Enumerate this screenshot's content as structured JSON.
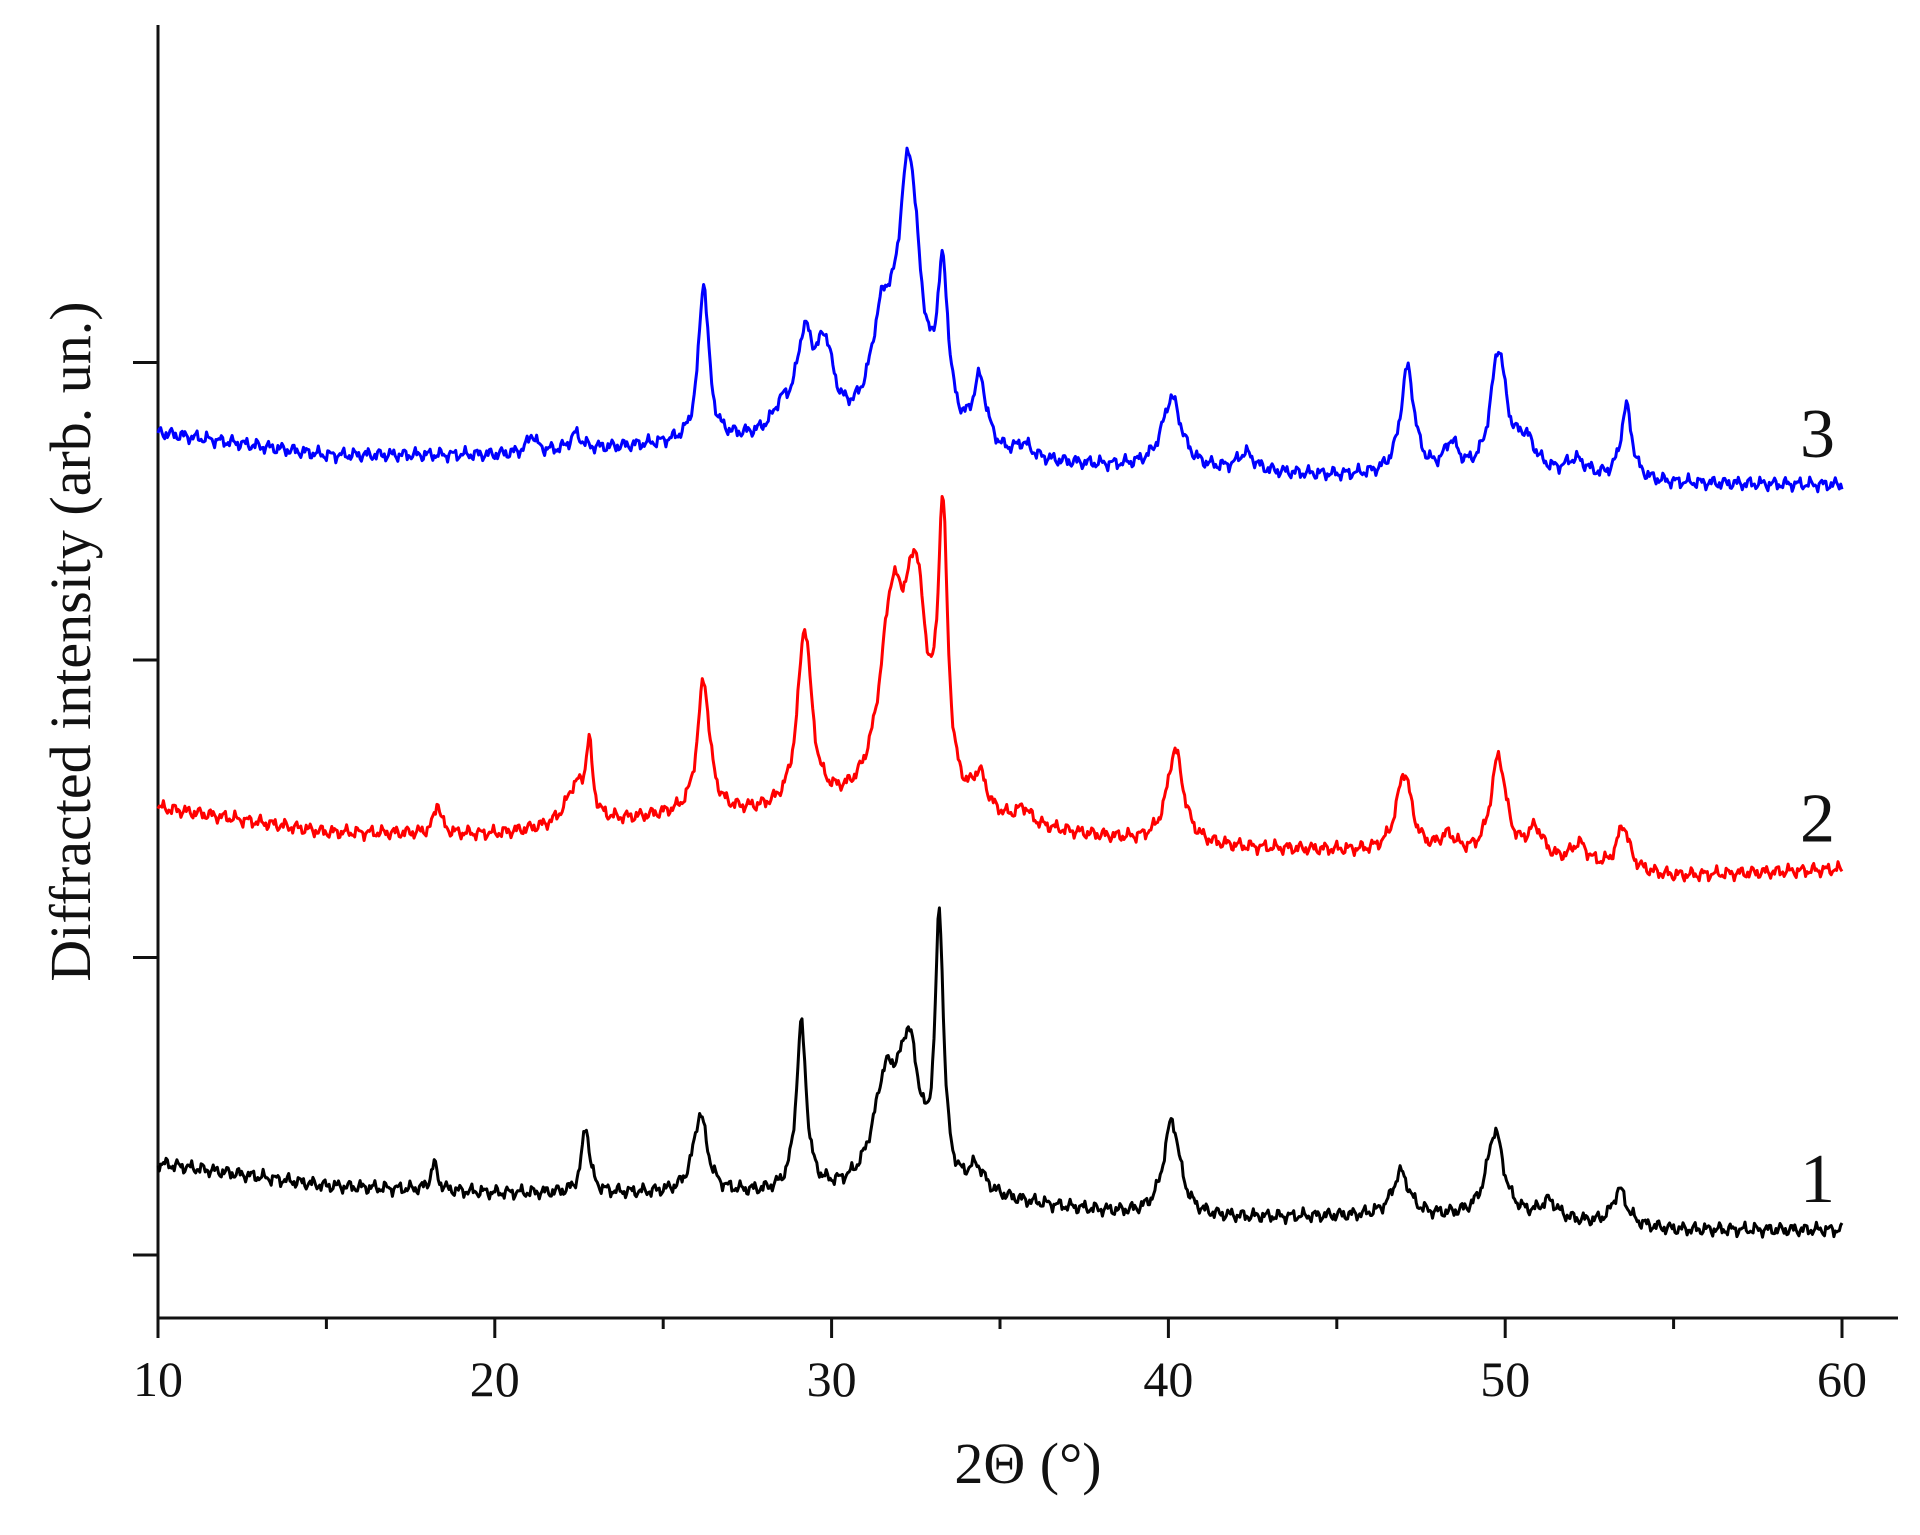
{
  "chart_data": {
    "type": "line",
    "title": "",
    "xlabel": "2Θ (°)",
    "ylabel": "Diffracted intensity (arb. un.)",
    "xlim": [
      10,
      62
    ],
    "ylim": [
      0,
      1000
    ],
    "x_ticks": [
      10,
      20,
      30,
      40,
      50,
      60
    ],
    "x_tick_labels": [
      "10",
      "20",
      "30",
      "40",
      "50",
      "60"
    ],
    "y_ticks": [
      0,
      250,
      500,
      750
    ],
    "y_tick_labels_visible": false,
    "grid": false,
    "legend": "inline-labels-right",
    "series": [
      {
        "label": "1",
        "color": "#000000",
        "baseline": [
          [
            10,
            77
          ],
          [
            15,
            58
          ],
          [
            20,
            52
          ],
          [
            25,
            51
          ],
          [
            30,
            49
          ],
          [
            35,
            44
          ],
          [
            40,
            30
          ],
          [
            45,
            32
          ],
          [
            50,
            31
          ],
          [
            55,
            21
          ],
          [
            60,
            21
          ]
        ],
        "peaks": [
          [
            18.2,
            22,
            0.12
          ],
          [
            22.7,
            56,
            0.14
          ],
          [
            26.1,
            66,
            0.25
          ],
          [
            29.1,
            140,
            0.18
          ],
          [
            31.6,
            85,
            0.45
          ],
          [
            32.3,
            112,
            0.38
          ],
          [
            33.2,
            220,
            0.15
          ],
          [
            34.3,
            22,
            0.3
          ],
          [
            40.1,
            82,
            0.3
          ],
          [
            46.9,
            37,
            0.3
          ],
          [
            49.7,
            72,
            0.3
          ],
          [
            51.3,
            15,
            0.3
          ],
          [
            53.4,
            30,
            0.25
          ]
        ]
      },
      {
        "label": "2",
        "color": "#ff0000",
        "baseline": [
          [
            10,
            376
          ],
          [
            15,
            355
          ],
          [
            20,
            353
          ],
          [
            25,
            367
          ],
          [
            30,
            370
          ],
          [
            35,
            359
          ],
          [
            40,
            343
          ],
          [
            45,
            339
          ],
          [
            50,
            330
          ],
          [
            55,
            318
          ],
          [
            60,
            324
          ]
        ],
        "peaks": [
          [
            18.3,
            26,
            0.12
          ],
          [
            22.4,
            32,
            0.35
          ],
          [
            22.8,
            58,
            0.12
          ],
          [
            26.2,
            112,
            0.22
          ],
          [
            29.2,
            150,
            0.25
          ],
          [
            31.8,
            160,
            0.45
          ],
          [
            32.5,
            170,
            0.38
          ],
          [
            33.3,
            230,
            0.17
          ],
          [
            34.4,
            30,
            0.25
          ],
          [
            35.7,
            13,
            0.25
          ],
          [
            40.2,
            80,
            0.3
          ],
          [
            47,
            68,
            0.28
          ],
          [
            48.3,
            15,
            0.3
          ],
          [
            49.8,
            85,
            0.28
          ],
          [
            50.9,
            26,
            0.3
          ],
          [
            52.2,
            18,
            0.3
          ],
          [
            53.5,
            38,
            0.22
          ]
        ]
      },
      {
        "label": "3",
        "color": "#0000ff",
        "baseline": [
          [
            10,
            691
          ],
          [
            15,
            672
          ],
          [
            20,
            672
          ],
          [
            25,
            680
          ],
          [
            30,
            685
          ],
          [
            35,
            665
          ],
          [
            40,
            659
          ],
          [
            45,
            654
          ],
          [
            50,
            651
          ],
          [
            55,
            648
          ],
          [
            60,
            647
          ]
        ],
        "peaks": [
          [
            21.1,
            15,
            0.15
          ],
          [
            22.4,
            13,
            0.2
          ],
          [
            26.2,
            133,
            0.18
          ],
          [
            28.5,
            18,
            0.3
          ],
          [
            29.2,
            75,
            0.3
          ],
          [
            29.8,
            64,
            0.3
          ],
          [
            31.5,
            80,
            0.4
          ],
          [
            32.3,
            228,
            0.4
          ],
          [
            33.3,
            128,
            0.2
          ],
          [
            34.4,
            57,
            0.25
          ],
          [
            35.7,
            11,
            0.3
          ],
          [
            40.1,
            60,
            0.35
          ],
          [
            42.3,
            15,
            0.3
          ],
          [
            47.1,
            90,
            0.25
          ],
          [
            48.4,
            25,
            0.25
          ],
          [
            49.8,
            103,
            0.28
          ],
          [
            50.6,
            28,
            0.4
          ],
          [
            52.1,
            15,
            0.4
          ],
          [
            53.6,
            62,
            0.2
          ]
        ]
      }
    ]
  }
}
